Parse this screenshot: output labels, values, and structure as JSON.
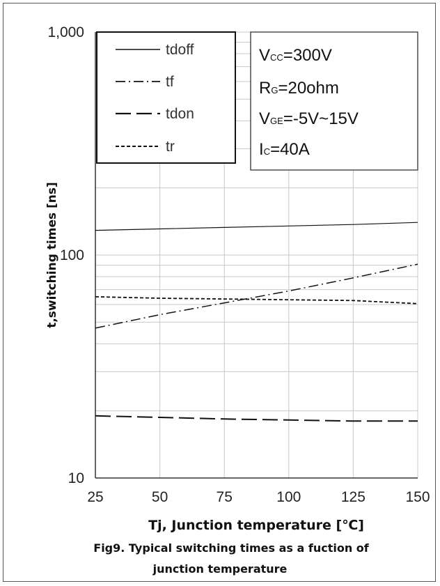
{
  "chart_data": {
    "type": "line",
    "title": "",
    "xlabel": "Tj, Junction temperature [℃]",
    "ylabel": "t,switching times [ns]",
    "caption_lines": [
      "Fig9. Typical switching times as a fuction of",
      "junction temperature"
    ],
    "x_scale": "linear",
    "y_scale": "log",
    "xlim": [
      25,
      150
    ],
    "ylim": [
      10,
      1000
    ],
    "x_ticks": [
      25,
      50,
      75,
      100,
      125,
      150
    ],
    "x_tick_labels": [
      "25",
      "50",
      "75",
      "100",
      "125",
      "150"
    ],
    "y_ticks": [
      10,
      100,
      1000
    ],
    "y_tick_labels": [
      "10",
      "100",
      "1,000"
    ],
    "grid": true,
    "legend_position": "top-left",
    "x": [
      25,
      50,
      75,
      100,
      125,
      150
    ],
    "series": [
      {
        "name": "tdoff",
        "style": "solid",
        "values": [
          129,
          131,
          133,
          135,
          137,
          140
        ]
      },
      {
        "name": "tf",
        "style": "dash-dot",
        "values": [
          47,
          54,
          61,
          69,
          79,
          91
        ]
      },
      {
        "name": "tdon",
        "style": "long-dash",
        "values": [
          19,
          18.7,
          18.4,
          18.2,
          18.0,
          18.0
        ]
      },
      {
        "name": "tr",
        "style": "short-dash",
        "values": [
          65,
          64,
          63.5,
          63,
          62.5,
          60.5
        ]
      }
    ],
    "conditions": [
      {
        "main": "V",
        "sub": "CC",
        "rest": "=300V"
      },
      {
        "main": "R",
        "sub": "G",
        "rest": "=20ohm"
      },
      {
        "main": "V",
        "sub": "GE",
        "rest": "=-5V~15V"
      },
      {
        "main": "I",
        "sub": "C",
        "rest": "=40A"
      }
    ]
  },
  "colors": {
    "line": "#111111",
    "grid": "#c8c8c8",
    "axis": "#333333"
  }
}
